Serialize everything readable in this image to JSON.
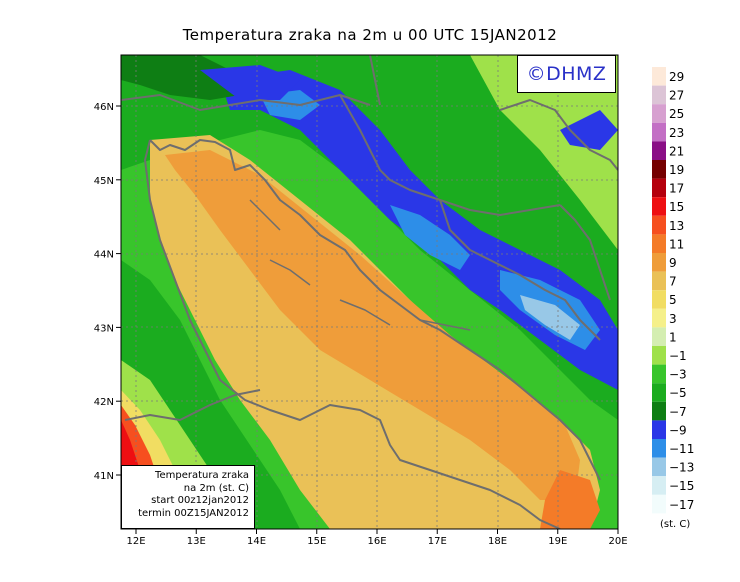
{
  "title": "Temperatura zraka na 2m u 00 UTC 15JAN2012",
  "logo": "©DHMZ",
  "infobox": {
    "line1": "Temperatura zraka",
    "line2": "na 2m (st. C)",
    "line3": "start 00z12jan2012",
    "line4": "termin 00Z15JAN2012"
  },
  "x_ticks": [
    "12E",
    "13E",
    "14E",
    "15E",
    "16E",
    "17E",
    "18E",
    "19E",
    "20E"
  ],
  "y_ticks": [
    "46N",
    "45N",
    "44N",
    "43N",
    "42N",
    "41N"
  ],
  "colorbar": {
    "labels": [
      "29",
      "27",
      "25",
      "23",
      "21",
      "19",
      "17",
      "15",
      "13",
      "11",
      "9",
      "7",
      "5",
      "3",
      "1",
      "−1",
      "−3",
      "−5",
      "−7",
      "−9",
      "−11",
      "−13",
      "−15",
      "−17"
    ],
    "colors": [
      "#fde9d9",
      "#dcc4d6",
      "#d7a0d0",
      "#c36fc5",
      "#8a0e86",
      "#750000",
      "#b5000d",
      "#ee0f12",
      "#f64f1f",
      "#f47b28",
      "#ef9d3a",
      "#eac157",
      "#f1dd62",
      "#f5f08a",
      "#d4eeb1",
      "#9fe14a",
      "#38c52b",
      "#1bac1f",
      "#0e7e14",
      "#2a37e7",
      "#2d8ee8",
      "#98c8e7",
      "#d6eef3",
      "#f2fcfc"
    ],
    "unit": "(st. C)"
  }
}
